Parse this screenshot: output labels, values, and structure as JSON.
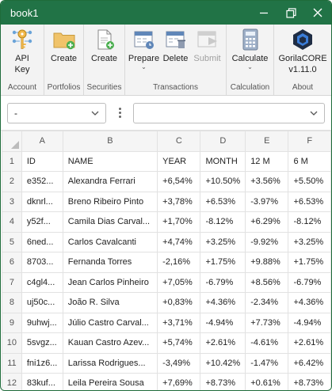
{
  "window": {
    "title": "book1"
  },
  "ribbon": {
    "groups": [
      {
        "label": "Account",
        "buttons": [
          {
            "label": "API\nKey",
            "icon": "api-key-icon"
          }
        ]
      },
      {
        "label": "Portfolios",
        "buttons": [
          {
            "label": "Create",
            "icon": "folder-add-icon"
          }
        ]
      },
      {
        "label": "Securities",
        "buttons": [
          {
            "label": "Create",
            "icon": "document-add-icon"
          }
        ]
      },
      {
        "label": "Transactions",
        "buttons": [
          {
            "label": "Prepare",
            "icon": "calendar-prepare-icon",
            "dropdown": true
          },
          {
            "label": "Delete",
            "icon": "calendar-delete-icon"
          },
          {
            "label": "Submit",
            "icon": "submit-icon",
            "disabled": true
          }
        ]
      },
      {
        "label": "Calculation",
        "buttons": [
          {
            "label": "Calculate",
            "icon": "calculator-icon",
            "dropdown": true
          }
        ]
      },
      {
        "label": "About",
        "buttons": [
          {
            "label": "GorilaCORE\nv1.11.0",
            "icon": "gorilacore-logo-icon"
          }
        ]
      }
    ]
  },
  "toolbar": {
    "left_select": "-",
    "right_select": ""
  },
  "sheet": {
    "columns": [
      "A",
      "B",
      "C",
      "D",
      "E",
      "F"
    ],
    "rows": [
      [
        "1",
        "ID",
        "NAME",
        "YEAR",
        "MONTH",
        "12 M",
        "6 M"
      ],
      [
        "2",
        "e352...",
        "Alexandra Ferrari",
        "+6,54%",
        "+10.50%",
        "+3.56%",
        "+5.50%"
      ],
      [
        "3",
        "dknrl...",
        "Breno Ribeiro Pinto",
        "+3,78%",
        "+6.53%",
        "-3.97%",
        "+6.53%"
      ],
      [
        "4",
        "y52f...",
        "Camila Dias Carval...",
        "+1,70%",
        "-8.12%",
        "+6.29%",
        "-8.12%"
      ],
      [
        "5",
        "6ned...",
        "Carlos Cavalcanti",
        "+4,74%",
        "+3.25%",
        "-9.92%",
        "+3.25%"
      ],
      [
        "6",
        "8703...",
        "Fernanda Torres",
        "-2,16%",
        "+1.75%",
        "+9.88%",
        "+1.75%"
      ],
      [
        "7",
        "c4gl4...",
        "Jean Carlos Pinheiro",
        "+7,05%",
        "-6.79%",
        "+8.56%",
        "-6.79%"
      ],
      [
        "8",
        "uj50c...",
        "João R. Silva",
        "+0,83%",
        "+4.36%",
        "-2.34%",
        "+4.36%"
      ],
      [
        "9",
        "9uhwj...",
        "Júlio Castro Carval...",
        "+3,71%",
        "-4.94%",
        "+7.73%",
        "-4.94%"
      ],
      [
        "10",
        "5svgz...",
        "Kauan Castro Azev...",
        "+5,74%",
        "+2.61%",
        "-4.61%",
        "+2.61%"
      ],
      [
        "11",
        "fni1z6...",
        "Larissa Rodrigues...",
        "-3,49%",
        "+10.42%",
        "-1.47%",
        "+6.42%"
      ],
      [
        "12",
        "83kuf...",
        "Leila Pereira Sousa",
        "+7,69%",
        "+8.73%",
        "+0.61%",
        "+8.73%"
      ]
    ]
  },
  "colors": {
    "titlebar": "#217346",
    "accent": "#2e7d4f"
  }
}
